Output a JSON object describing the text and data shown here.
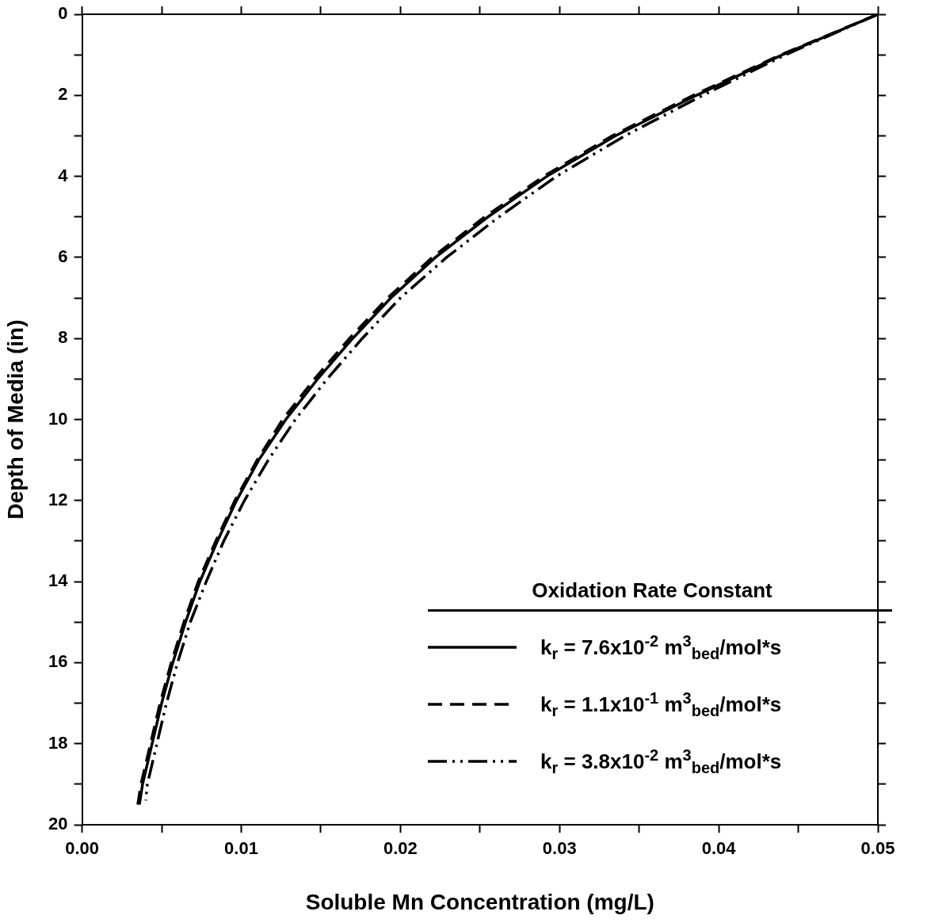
{
  "chart_data": {
    "type": "line",
    "xlabel": "Soluble Mn Concentration (mg/L)",
    "ylabel": "Depth of Media (in)",
    "legend_title": "Oxidation Rate Constant",
    "legend": "bottom right",
    "grid": false,
    "marker": "none",
    "xlim": [
      0,
      0.05
    ],
    "xticks": [
      {
        "value": 0,
        "label": "0.00"
      },
      {
        "value": 0.005,
        "label": null
      },
      {
        "value": 0.01,
        "label": "0.01"
      },
      {
        "value": 0.015,
        "label": null
      },
      {
        "value": 0.02,
        "label": "0.02"
      },
      {
        "value": 0.025,
        "label": null
      },
      {
        "value": 0.03,
        "label": "0.03"
      },
      {
        "value": 0.035,
        "label": null
      },
      {
        "value": 0.04,
        "label": "0.04"
      },
      {
        "value": 0.045,
        "label": null
      },
      {
        "value": 0.05,
        "label": "0.05"
      }
    ],
    "ylim": [
      20,
      0
    ],
    "yticks": [
      0,
      {
        "value": 1,
        "label": null
      },
      2,
      {
        "value": 3,
        "label": null
      },
      4,
      {
        "value": 5,
        "label": null
      },
      6,
      {
        "value": 7,
        "label": null
      },
      8,
      {
        "value": 9,
        "label": null
      },
      10,
      {
        "value": 11,
        "label": null
      },
      12,
      {
        "value": 13,
        "label": null
      },
      14,
      {
        "value": 15,
        "label": null
      },
      16,
      {
        "value": 17,
        "label": null
      },
      18,
      {
        "value": 19,
        "label": null
      },
      20
    ],
    "series": [
      {
        "name": "k$_{r}$ = 7.6x10$^{-2}$ m$^{3}$$_{bed}$/mol*s",
        "color": "#000000",
        "line_style": "solid",
        "x": [
          0.05,
          0.044,
          0.0386,
          0.0335,
          0.0292,
          0.0255,
          0.0222,
          0.0194,
          0.017,
          0.0148,
          0.0128,
          0.0111,
          0.0097,
          0.0085,
          0.0074,
          0.0065,
          0.0057,
          0.005,
          0.0044,
          0.0038,
          0.0036
        ],
        "values": [
          0,
          1,
          2,
          3,
          4,
          5,
          6,
          7,
          8,
          9,
          10,
          11,
          12,
          13,
          14,
          15,
          16,
          17,
          18,
          19,
          19.5
        ]
      },
      {
        "name": "k$_{r}$ = 1.1x10$^{-1}$ m$^{3}$$_{bed}$/mol*s",
        "color": "#000000",
        "line_style": "dashed",
        "x": [
          0.05,
          0.0439,
          0.0384,
          0.0333,
          0.029,
          0.0253,
          0.022,
          0.0192,
          0.0168,
          0.0146,
          0.0126,
          0.011,
          0.0096,
          0.0084,
          0.0073,
          0.0064,
          0.0056,
          0.0049,
          0.0043,
          0.0037,
          0.0035
        ],
        "values": [
          0,
          1,
          2,
          3,
          4,
          5,
          6,
          7,
          8,
          9,
          10,
          11,
          12,
          13,
          14,
          15,
          16,
          17,
          18,
          19,
          19.5
        ]
      },
      {
        "name": "k$_{r}$ = 3.8x10$^{-2}$ m$^{3}$$_{bed}$/mol*s",
        "color": "#000000",
        "line_style": "dashdotdot",
        "x": [
          0.05,
          0.0442,
          0.039,
          0.0341,
          0.0298,
          0.0262,
          0.0229,
          0.02,
          0.0176,
          0.0154,
          0.0134,
          0.0117,
          0.0102,
          0.0089,
          0.0078,
          0.0068,
          0.006,
          0.0053,
          0.0047,
          0.0041,
          0.004
        ],
        "values": [
          0,
          1,
          2,
          3,
          4,
          5,
          6,
          7,
          8,
          9,
          10,
          11,
          12,
          13,
          14,
          15,
          16,
          17,
          18,
          19,
          19.4
        ]
      }
    ]
  }
}
